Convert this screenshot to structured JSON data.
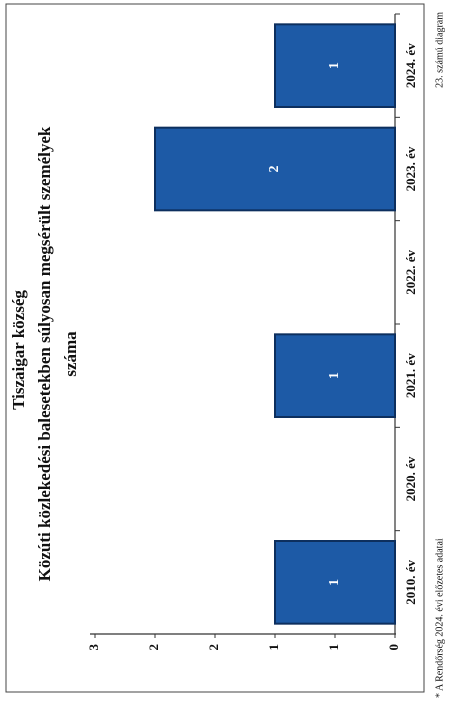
{
  "header": {
    "title": "Tiszaigar község"
  },
  "chart_data": {
    "type": "bar",
    "title": "Közúti közlekedési balesetekben súlyosan megsérült személyek",
    "subtitle": "száma",
    "categories": [
      "2010. év",
      "2020. év",
      "2021. év",
      "2022. év",
      "2023. év",
      "2024. év"
    ],
    "values": [
      1,
      0,
      1,
      0,
      2,
      1
    ],
    "color": "#1d5aa6",
    "ylim": [
      0,
      2.5
    ],
    "yticks": [
      0,
      {
        "value": 0.5,
        "label": "1"
      },
      1,
      {
        "value": 1.5,
        "label": "2"
      },
      2,
      {
        "value": 2.5,
        "label": "3"
      }
    ],
    "grid": false
  },
  "footer": {
    "source": "* A Rendőrség 2024. évi előzetes adatai",
    "caption": "23. számú diagram"
  }
}
